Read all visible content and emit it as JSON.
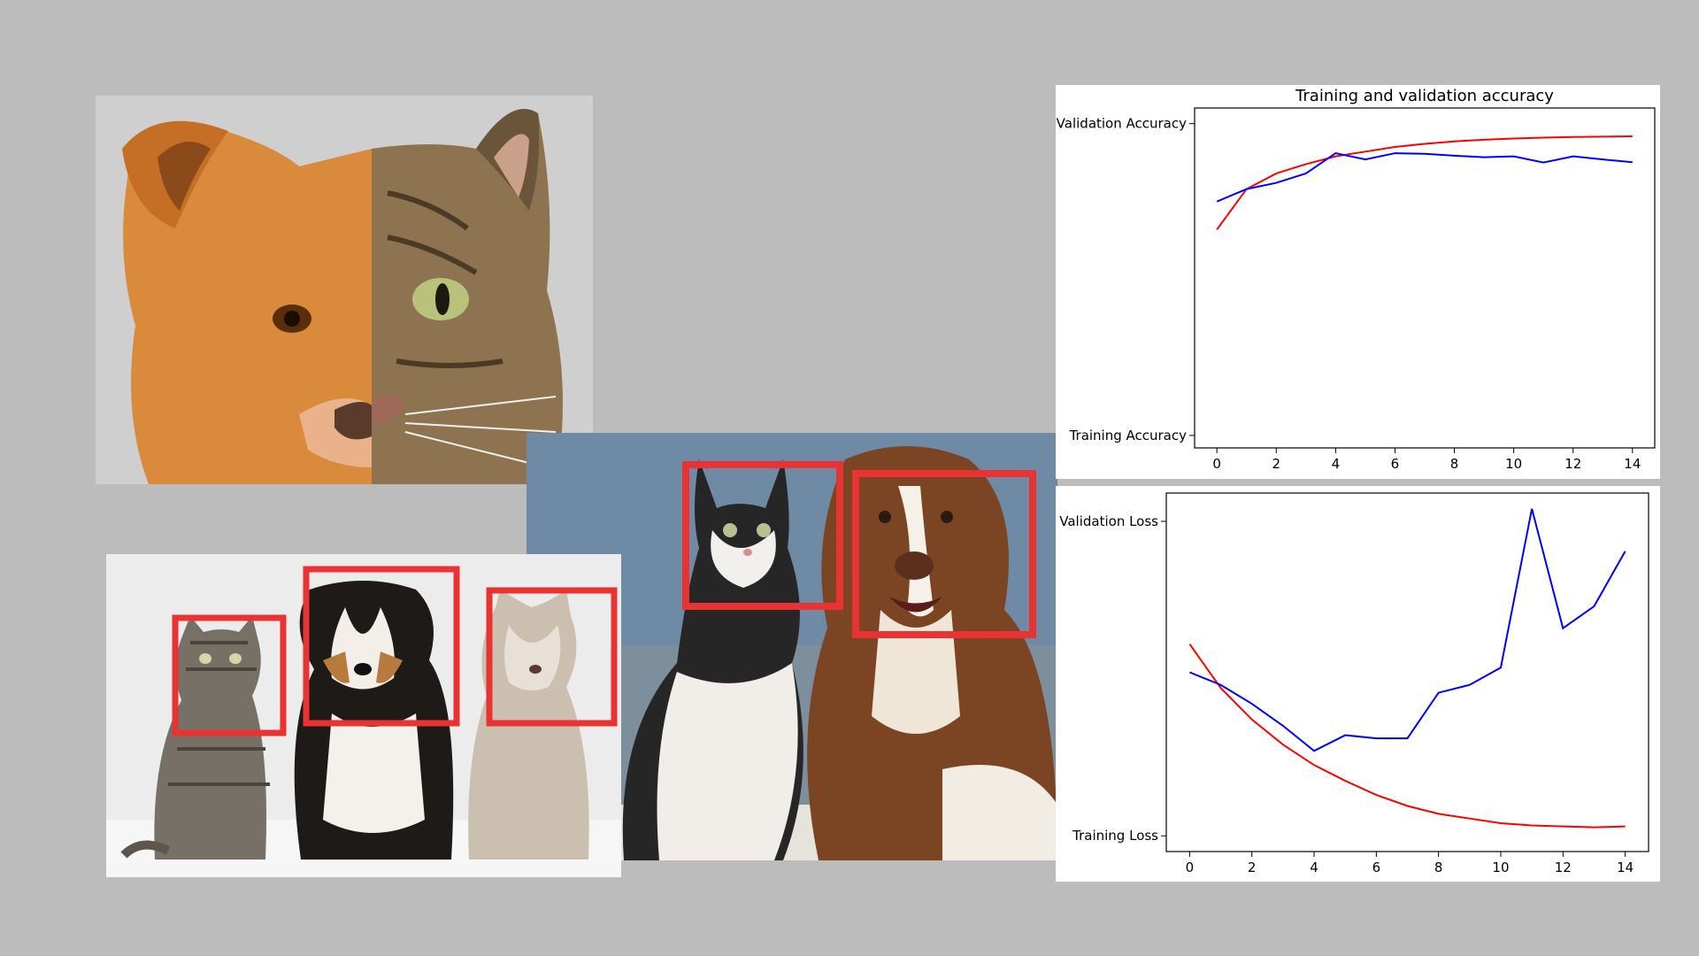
{
  "photos": {
    "split_face": {
      "description_icon": "dog-cat-split-face-photo"
    },
    "three_pets": {
      "description_icon": "cat-dog-dog-photo",
      "box_color": "#e93232"
    },
    "cat_and_dog": {
      "description_icon": "cat-and-dog-photo",
      "box_color": "#e93232"
    }
  },
  "chart_data": [
    {
      "type": "line",
      "title": "Training and validation accuracy",
      "x": [
        0,
        1,
        2,
        3,
        4,
        5,
        6,
        7,
        8,
        9,
        10,
        11,
        12,
        13,
        14
      ],
      "xticks": [
        0,
        2,
        4,
        6,
        8,
        10,
        12,
        14
      ],
      "xlim": [
        -0.75,
        14.75
      ],
      "yticklabels": [
        {
          "label": "Training Accuracy",
          "value": 0.0
        },
        {
          "label": "Validation Accuracy",
          "value": 1.0
        }
      ],
      "ylim": [
        -0.04,
        1.05
      ],
      "series": [
        {
          "color": "#ff0000",
          "values": [
            0.66,
            0.79,
            0.84,
            0.87,
            0.895,
            0.91,
            0.925,
            0.935,
            0.943,
            0.948,
            0.952,
            0.955,
            0.957,
            0.958,
            0.959
          ]
        },
        {
          "color": "#0000ff",
          "values": [
            0.75,
            0.79,
            0.81,
            0.84,
            0.905,
            0.885,
            0.905,
            0.903,
            0.897,
            0.892,
            0.895,
            0.875,
            0.895,
            0.885,
            0.876
          ]
        }
      ],
      "grid": false
    },
    {
      "type": "line",
      "title": "",
      "x": [
        0,
        1,
        2,
        3,
        4,
        5,
        6,
        7,
        8,
        9,
        10,
        11,
        12,
        13,
        14
      ],
      "xticks": [
        0,
        2,
        4,
        6,
        8,
        10,
        12,
        14
      ],
      "xlim": [
        -0.75,
        14.75
      ],
      "yticklabels": [
        {
          "label": "Training Loss",
          "value": 0.0
        },
        {
          "label": "Validation Loss",
          "value": 1.0
        }
      ],
      "ylim": [
        -0.05,
        1.09
      ],
      "series": [
        {
          "color": "#ff0000",
          "values": [
            0.61,
            0.47,
            0.37,
            0.29,
            0.225,
            0.175,
            0.13,
            0.095,
            0.07,
            0.055,
            0.04,
            0.033,
            0.03,
            0.027,
            0.03
          ]
        },
        {
          "color": "#0000ff",
          "values": [
            0.52,
            0.48,
            0.42,
            0.35,
            0.27,
            0.32,
            0.31,
            0.31,
            0.455,
            0.48,
            0.535,
            1.04,
            0.66,
            0.73,
            0.905
          ]
        }
      ],
      "grid": false
    }
  ]
}
